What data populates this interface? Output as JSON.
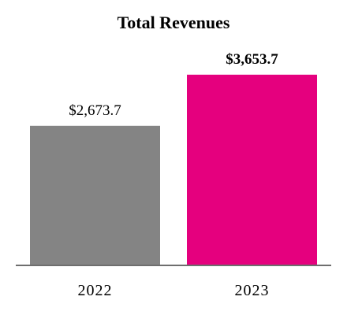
{
  "chart_data": {
    "type": "bar",
    "title": "Total Revenues",
    "categories": [
      "2022",
      "2023"
    ],
    "values": [
      2673.7,
      3653.7
    ],
    "value_labels": [
      "$2,673.7",
      "$3,653.7"
    ],
    "value_label_bold": [
      false,
      true
    ],
    "colors": [
      "#848484",
      "#e5007e"
    ],
    "axis_color": "#6e6e6e",
    "xlabel": "",
    "ylabel": "",
    "ylim": [
      0,
      4300
    ],
    "grid": false,
    "legend": "none"
  }
}
